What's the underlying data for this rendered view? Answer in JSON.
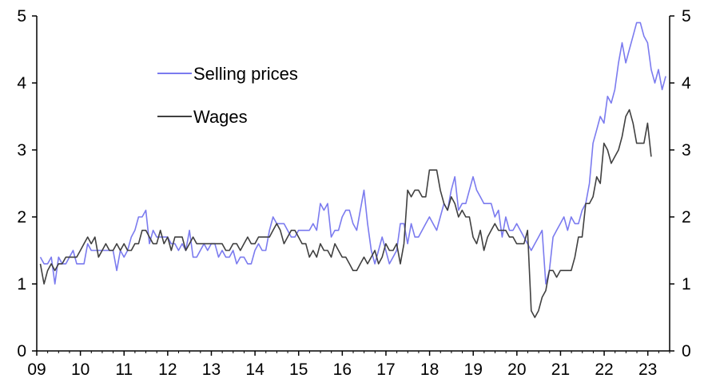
{
  "chart_data": {
    "type": "line",
    "title": "",
    "xlabel": "",
    "ylabel": "",
    "ylim": [
      0,
      5
    ],
    "y2lim": [
      0,
      5
    ],
    "xlim": [
      2009,
      2023.5
    ],
    "yticks": [
      0,
      1,
      2,
      3,
      4,
      5
    ],
    "xtick_labels": [
      "09",
      "10",
      "11",
      "12",
      "13",
      "14",
      "15",
      "16",
      "17",
      "18",
      "19",
      "20",
      "21",
      "22",
      "23"
    ],
    "legend_position": "top-left",
    "series": [
      {
        "name": "Selling prices",
        "color": "#7b7bef",
        "x_start": 2009.083,
        "step": 0.0833,
        "values": [
          1.4,
          1.3,
          1.3,
          1.4,
          1.0,
          1.4,
          1.3,
          1.3,
          1.4,
          1.5,
          1.3,
          1.3,
          1.3,
          1.6,
          1.5,
          1.5,
          1.5,
          1.5,
          1.5,
          1.5,
          1.5,
          1.2,
          1.5,
          1.4,
          1.5,
          1.7,
          1.8,
          2.0,
          2.0,
          2.1,
          1.6,
          1.8,
          1.7,
          1.7,
          1.7,
          1.7,
          1.6,
          1.6,
          1.5,
          1.6,
          1.5,
          1.8,
          1.4,
          1.4,
          1.5,
          1.6,
          1.5,
          1.6,
          1.6,
          1.4,
          1.5,
          1.4,
          1.4,
          1.5,
          1.3,
          1.4,
          1.4,
          1.3,
          1.3,
          1.5,
          1.6,
          1.5,
          1.5,
          1.8,
          2.0,
          1.9,
          1.9,
          1.9,
          1.8,
          1.7,
          1.7,
          1.8,
          1.8,
          1.8,
          1.8,
          1.9,
          1.8,
          2.2,
          2.1,
          2.2,
          1.7,
          1.8,
          1.8,
          2.0,
          2.1,
          2.1,
          1.9,
          1.8,
          2.1,
          2.4,
          1.9,
          1.5,
          1.3,
          1.5,
          1.7,
          1.5,
          1.3,
          1.4,
          1.5,
          1.9,
          1.9,
          1.6,
          1.9,
          1.7,
          1.7,
          1.8,
          1.9,
          2.0,
          1.9,
          1.8,
          2.0,
          2.2,
          2.1,
          2.4,
          2.6,
          2.1,
          2.2,
          2.2,
          2.4,
          2.6,
          2.4,
          2.3,
          2.2,
          2.2,
          2.2,
          2.0,
          2.1,
          1.7,
          2.0,
          1.8,
          1.8,
          1.9,
          1.8,
          1.7,
          1.6,
          1.5,
          1.6,
          1.7,
          1.8,
          1.0,
          1.2,
          1.7,
          1.8,
          1.9,
          2.0,
          1.8,
          2.0,
          1.9,
          1.9,
          2.1,
          2.2,
          2.5,
          3.1,
          3.3,
          3.5,
          3.4,
          3.8,
          3.7,
          3.9,
          4.3,
          4.6,
          4.3,
          4.5,
          4.7,
          4.9,
          4.9,
          4.7,
          4.6,
          4.2,
          4.0,
          4.2,
          3.9,
          4.1
        ]
      },
      {
        "name": "Wages",
        "color": "#404040",
        "x_start": 2009.083,
        "step": 0.0833,
        "values": [
          1.3,
          1.0,
          1.2,
          1.3,
          1.2,
          1.3,
          1.3,
          1.4,
          1.4,
          1.4,
          1.4,
          1.5,
          1.6,
          1.7,
          1.6,
          1.7,
          1.4,
          1.5,
          1.6,
          1.5,
          1.5,
          1.6,
          1.5,
          1.6,
          1.5,
          1.5,
          1.6,
          1.6,
          1.8,
          1.8,
          1.7,
          1.6,
          1.6,
          1.8,
          1.6,
          1.7,
          1.5,
          1.7,
          1.7,
          1.7,
          1.5,
          1.6,
          1.7,
          1.6,
          1.6,
          1.6,
          1.6,
          1.6,
          1.6,
          1.6,
          1.6,
          1.5,
          1.5,
          1.6,
          1.6,
          1.5,
          1.6,
          1.7,
          1.6,
          1.6,
          1.7,
          1.7,
          1.7,
          1.7,
          1.8,
          1.9,
          1.8,
          1.6,
          1.7,
          1.8,
          1.8,
          1.7,
          1.6,
          1.6,
          1.4,
          1.5,
          1.4,
          1.6,
          1.5,
          1.5,
          1.4,
          1.6,
          1.5,
          1.4,
          1.4,
          1.3,
          1.2,
          1.2,
          1.3,
          1.4,
          1.3,
          1.4,
          1.5,
          1.3,
          1.4,
          1.6,
          1.5,
          1.5,
          1.6,
          1.3,
          1.6,
          2.4,
          2.3,
          2.4,
          2.4,
          2.3,
          2.3,
          2.7,
          2.7,
          2.7,
          2.4,
          2.2,
          2.1,
          2.3,
          2.2,
          2.0,
          2.1,
          2.0,
          2.0,
          1.7,
          1.6,
          1.8,
          1.5,
          1.7,
          1.8,
          1.9,
          1.8,
          1.8,
          1.8,
          1.7,
          1.7,
          1.6,
          1.6,
          1.6,
          1.8,
          0.6,
          0.5,
          0.6,
          0.8,
          0.9,
          1.2,
          1.2,
          1.1,
          1.2,
          1.2,
          1.2,
          1.2,
          1.4,
          1.7,
          1.7,
          2.2,
          2.2,
          2.3,
          2.6,
          2.5,
          3.1,
          3.0,
          2.8,
          2.9,
          3.0,
          3.2,
          3.5,
          3.6,
          3.4,
          3.1,
          3.1,
          3.1,
          3.4,
          2.9
        ]
      }
    ]
  }
}
